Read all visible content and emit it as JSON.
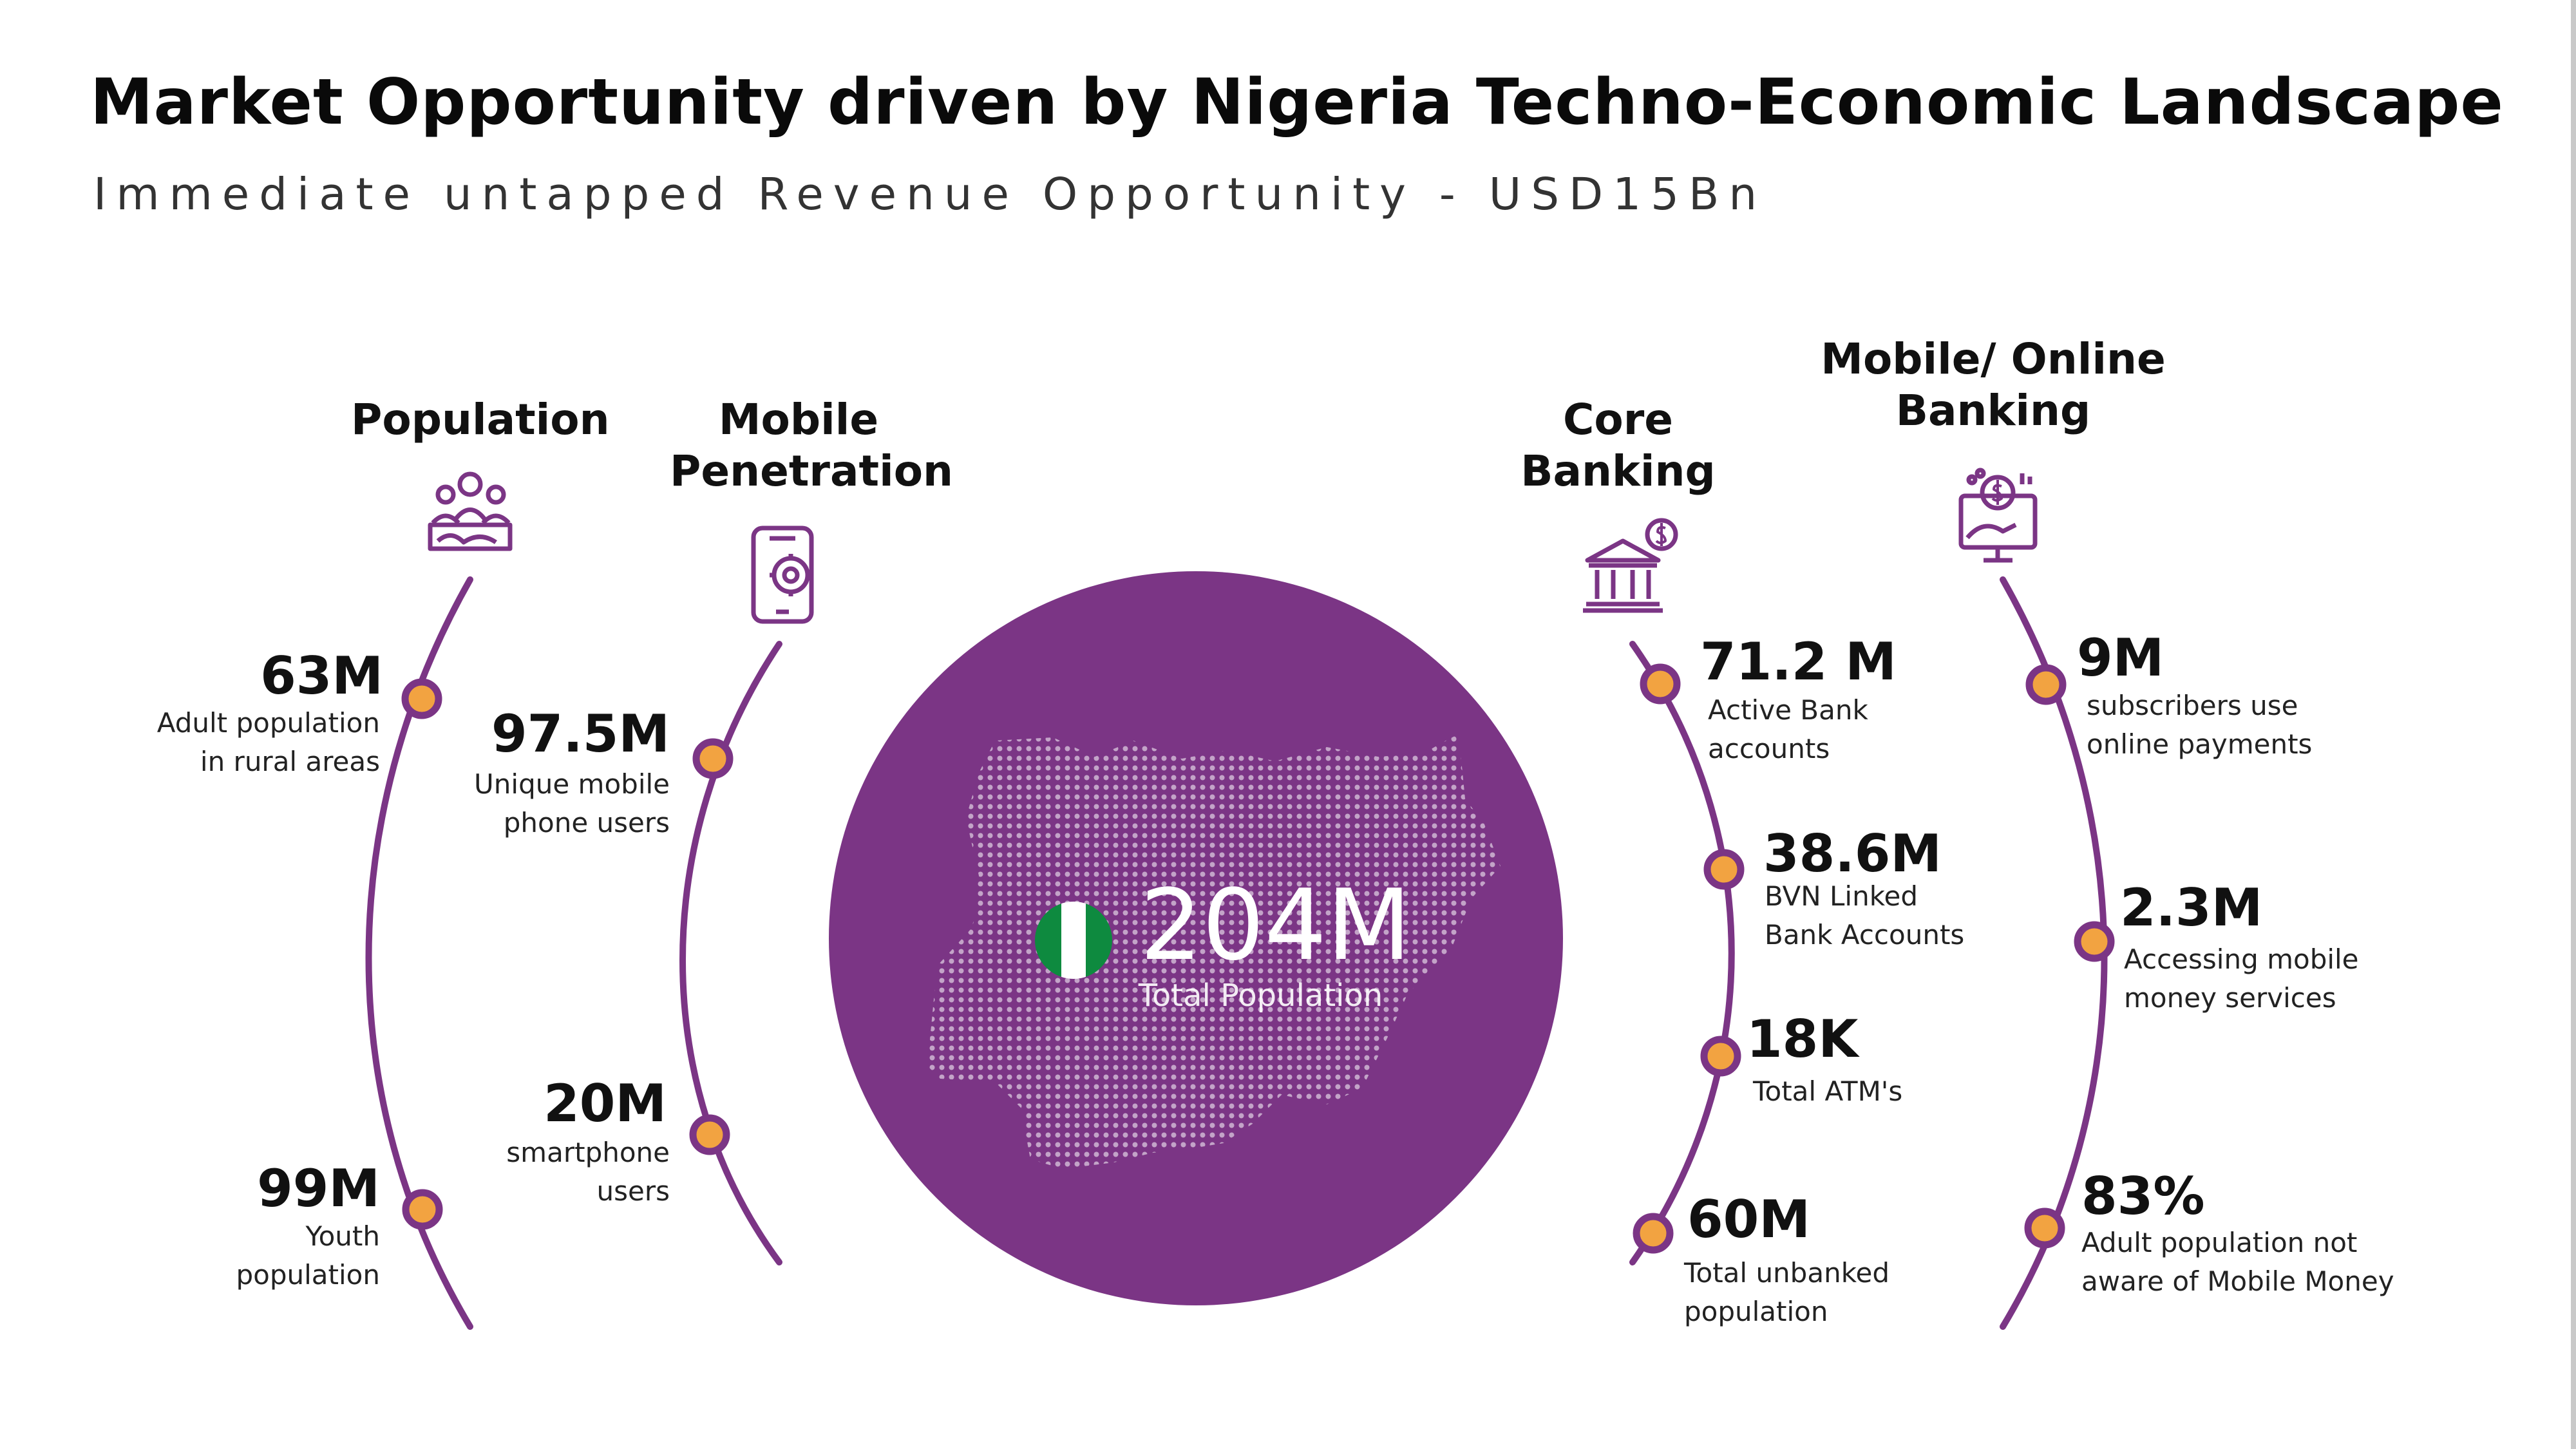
{
  "title": "Market Opportunity driven by Nigeria Techno-Economic Landscape",
  "subtitle": "Immediate untapped Revenue Opportunity - USD15Bn",
  "colors": {
    "accent_purple": "#7b3585",
    "marker_orange": "#f2a341",
    "flag_green": "#0e8a3f",
    "flag_white": "#ffffff"
  },
  "center": {
    "value": "204M",
    "label": "Total Population"
  },
  "categories": [
    {
      "title_lines": [
        "Population"
      ],
      "icon": "people-icon",
      "stats": [
        {
          "value": "63M",
          "desc_lines": [
            "Adult population",
            "in rural areas"
          ]
        },
        {
          "value": "99M",
          "desc_lines": [
            "Youth",
            "population"
          ]
        }
      ]
    },
    {
      "title_lines": [
        "Mobile",
        "Penetration"
      ],
      "icon": "mobile-gear-icon",
      "stats": [
        {
          "value": "97.5M",
          "desc_lines": [
            "Unique mobile",
            "phone users"
          ]
        },
        {
          "value": "20M",
          "desc_lines": [
            "smartphone",
            "users"
          ]
        }
      ]
    },
    {
      "title_lines": [
        "Core",
        "Banking"
      ],
      "icon": "bank-icon",
      "stats": [
        {
          "value": "71.2 M",
          "desc_lines": [
            "Active Bank",
            "accounts"
          ]
        },
        {
          "value": "38.6M",
          "desc_lines": [
            "BVN Linked",
            "Bank Accounts"
          ]
        },
        {
          "value": "18K",
          "desc_lines": [
            "Total ATM's"
          ]
        },
        {
          "value": "60M",
          "desc_lines": [
            "Total unbanked",
            "population"
          ]
        }
      ]
    },
    {
      "title_lines": [
        "Mobile/ Online",
        "Banking"
      ],
      "icon": "online-banking-icon",
      "stats": [
        {
          "value": "9M",
          "desc_lines": [
            "subscribers use",
            "online payments"
          ]
        },
        {
          "value": "2.3M",
          "desc_lines": [
            "Accessing mobile",
            "money services"
          ]
        },
        {
          "value": "83%",
          "desc_lines": [
            "Adult population not",
            "aware of Mobile Money"
          ]
        }
      ]
    }
  ]
}
